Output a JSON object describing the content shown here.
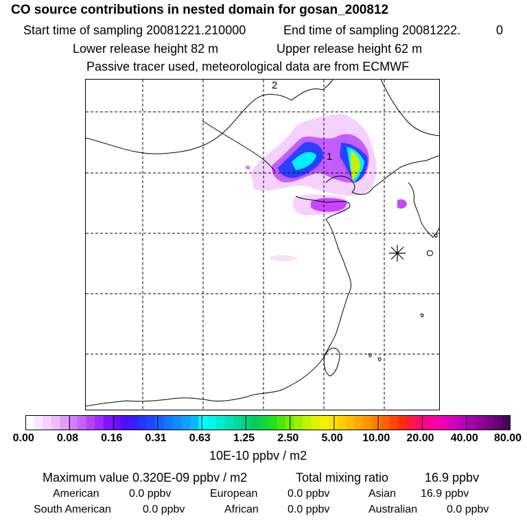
{
  "header": {
    "title": "CO  source contributions in nested domain for gosan_200812",
    "start_label": "Start time of sampling 20081221.210000",
    "end_label": "End time of sampling 20081222.",
    "end_value": "0",
    "lower_label": "Lower release height   82 m",
    "upper_label": "Upper release height   62 m",
    "tracer_line": "Passive tracer used, meteorological data are from ECMWF"
  },
  "map": {
    "marker_label_1": "1",
    "marker_label_2": "2",
    "receptor": "asterisk"
  },
  "colorbar": {
    "ticks": [
      "0.00",
      "0.08",
      "0.16",
      "0.31",
      "0.63",
      "1.25",
      "2.50",
      "5.00",
      "10.00",
      "20.00",
      "40.00",
      "80.00"
    ],
    "colors": [
      "#ffffff",
      "#fbe8ff",
      "#f6d2ff",
      "#f0bbff",
      "#e49cff",
      "#d77eff",
      "#c862ff",
      "#b545ff",
      "#9f2cff",
      "#8414ff",
      "#6a10ff",
      "#4f10ff",
      "#3a1eff",
      "#2a34ff",
      "#1d4aff",
      "#1a61ff",
      "#1677ff",
      "#128cff",
      "#0ea2ff",
      "#0ab6ff",
      "#00ffff",
      "#00f5e8",
      "#00ecd0",
      "#00e3b5",
      "#00da98",
      "#00d47c",
      "#00d060",
      "#10d840",
      "#20e020",
      "#48e800",
      "#70ee00",
      "#98f200",
      "#bef400",
      "#ddf400",
      "#f4ee00",
      "#ffe000",
      "#ffd000",
      "#ffbe00",
      "#ffaa00",
      "#ff9500",
      "#ff7e00",
      "#ff6200",
      "#ff4800",
      "#ff2d10",
      "#ff1a40",
      "#ff0a70",
      "#ff0090",
      "#f400a8",
      "#e400b8",
      "#d000bc",
      "#bc00b8",
      "#a800ac",
      "#92009c",
      "#7c0088",
      "#640072",
      "#4c005a"
    ],
    "units": "10E-10 ppbv / m2"
  },
  "stats": {
    "max_value": "Maximum value  0.320E-09 ppbv / m2",
    "total_label": "Total mixing ratio",
    "total_value": "16.9 ppbv",
    "american_label": "American",
    "american_value": "0.0 ppbv",
    "european_label": "European",
    "european_value": "0.0 ppbv",
    "asian_label": "Asian",
    "asian_value": "16.9 ppbv",
    "south_american_label": "South American",
    "south_american_value": "0.0 ppbv",
    "african_label": "African",
    "african_value": "0.0 ppbv",
    "australian_label": "Australian",
    "australian_value": "0.0 ppbv"
  }
}
